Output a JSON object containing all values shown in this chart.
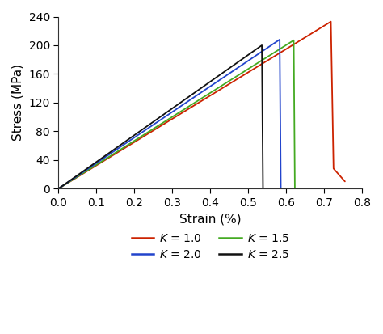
{
  "title": "",
  "xlabel": "Strain (%)",
  "ylabel": "Stress (MPa)",
  "xlim": [
    0.0,
    0.8
  ],
  "ylim": [
    0,
    240
  ],
  "xticks": [
    0.0,
    0.1,
    0.2,
    0.3,
    0.4,
    0.5,
    0.6,
    0.7,
    0.8
  ],
  "yticks": [
    0,
    40,
    80,
    120,
    160,
    200,
    240
  ],
  "curves": [
    {
      "label": "K = 1.0",
      "color": "#cc2200",
      "K": 1.0,
      "peak_strain": 0.718,
      "peak_stress": 233,
      "drop_strain": 0.725,
      "residual_stress": 28,
      "final_strain": 0.755,
      "final_stress": 10,
      "slope": 324.5
    },
    {
      "label": "K = 1.5",
      "color": "#44aa22",
      "K": 1.5,
      "peak_strain": 0.62,
      "peak_stress": 207,
      "drop_strain": 0.623,
      "residual_stress": 0,
      "final_strain": null,
      "final_stress": null,
      "slope": 333.9
    },
    {
      "label": "K = 2.0",
      "color": "#2244cc",
      "K": 2.0,
      "peak_strain": 0.583,
      "peak_stress": 208,
      "drop_strain": 0.586,
      "residual_stress": 0,
      "final_strain": null,
      "final_stress": null,
      "slope": 356.8
    },
    {
      "label": "K = 2.5",
      "color": "#111111",
      "K": 2.5,
      "peak_strain": 0.536,
      "peak_stress": 200,
      "drop_strain": 0.539,
      "residual_stress": 0,
      "final_strain": null,
      "final_stress": null,
      "slope": 373.1
    }
  ],
  "legend_labels": [
    "K = 1.0",
    "K = 1.5",
    "K = 2.0",
    "K = 2.5"
  ],
  "legend_colors": [
    "#cc2200",
    "#44aa22",
    "#2244cc",
    "#111111"
  ],
  "background_color": "#ffffff"
}
